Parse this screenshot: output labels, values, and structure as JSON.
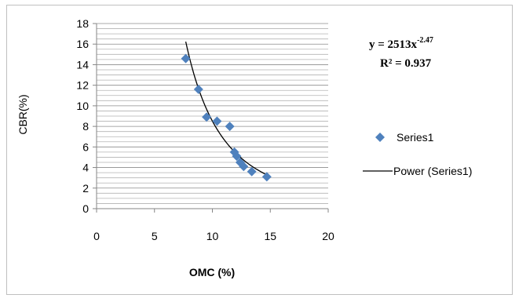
{
  "chart_data": {
    "type": "scatter",
    "xlabel": "OMC (%)",
    "ylabel": "CBR(%)",
    "xlim": [
      0,
      20
    ],
    "ylim": [
      0,
      18
    ],
    "x_ticks": [
      "0",
      "5",
      "10",
      "15",
      "20"
    ],
    "y_ticks": [
      "0",
      "2",
      "4",
      "6",
      "8",
      "10",
      "12",
      "14",
      "16",
      "18"
    ],
    "grid": "horizontal-minor",
    "legend_position": "right",
    "series": [
      {
        "name": "Series1",
        "marker": "diamond",
        "color": "#4f81bd",
        "x": [
          7.7,
          8.8,
          9.5,
          10.4,
          11.5,
          11.9,
          12.1,
          12.4,
          12.7,
          13.4,
          14.7
        ],
        "y": [
          14.6,
          11.6,
          8.9,
          8.5,
          8.0,
          5.5,
          5.1,
          4.5,
          4.1,
          3.6,
          3.1
        ]
      }
    ],
    "trendline": {
      "name": "Power (Series1)",
      "type": "power",
      "a": 2513,
      "b": -2.47,
      "x_range": [
        7.7,
        14.7
      ],
      "color": "#000000"
    },
    "annotations": {
      "equation_prefix": "y = 2513x",
      "equation_exponent": "-2.47",
      "r_squared": "R² = 0.937"
    }
  }
}
